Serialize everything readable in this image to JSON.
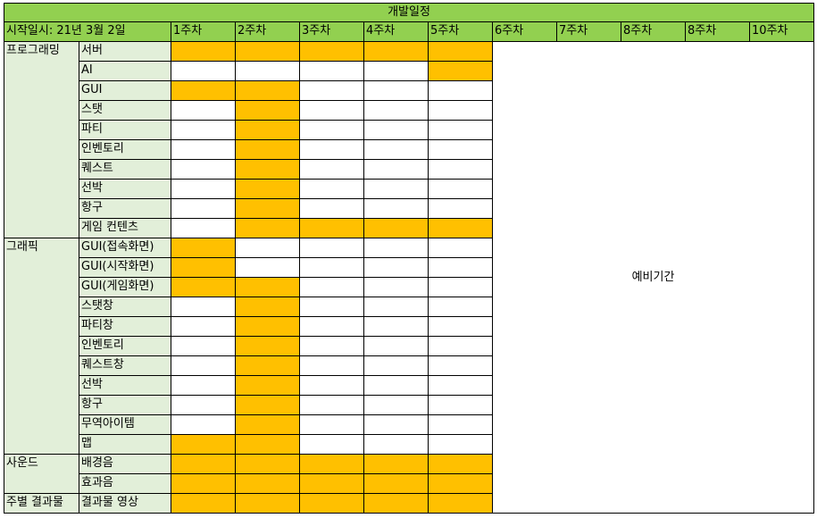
{
  "title": "개발일정",
  "start_label": "시작일시: 21년 3월 2일",
  "weeks": [
    "1주차",
    "2주차",
    "3주차",
    "4주차",
    "5주차",
    "6주차",
    "7주차",
    "8주차",
    "8주차",
    "10주차"
  ],
  "buffer_label": "예비기간",
  "groups": [
    {
      "name": "프로그래밍",
      "tasks": [
        {
          "name": "서버",
          "weeks": [
            1,
            1,
            1,
            1,
            1
          ]
        },
        {
          "name": "AI",
          "weeks": [
            0,
            0,
            0,
            0,
            1
          ]
        },
        {
          "name": "GUI",
          "weeks": [
            1,
            1,
            0,
            0,
            0
          ]
        },
        {
          "name": "스탯",
          "weeks": [
            0,
            1,
            0,
            0,
            0
          ]
        },
        {
          "name": "파티",
          "weeks": [
            0,
            1,
            0,
            0,
            0
          ]
        },
        {
          "name": "인벤토리",
          "weeks": [
            0,
            1,
            0,
            0,
            0
          ]
        },
        {
          "name": "퀘스트",
          "weeks": [
            0,
            1,
            0,
            0,
            0
          ]
        },
        {
          "name": "선박",
          "weeks": [
            0,
            1,
            0,
            0,
            0
          ]
        },
        {
          "name": "항구",
          "weeks": [
            0,
            1,
            0,
            0,
            0
          ]
        },
        {
          "name": "게임 컨텐츠",
          "weeks": [
            0,
            1,
            1,
            1,
            1
          ]
        }
      ]
    },
    {
      "name": "그래픽",
      "tasks": [
        {
          "name": "GUI(접속화면)",
          "weeks": [
            1,
            0,
            0,
            0,
            0
          ]
        },
        {
          "name": "GUI(시작화면)",
          "weeks": [
            1,
            0,
            0,
            0,
            0
          ]
        },
        {
          "name": "GUI(게임화면)",
          "weeks": [
            1,
            1,
            0,
            0,
            0
          ]
        },
        {
          "name": "스탯창",
          "weeks": [
            0,
            1,
            0,
            0,
            0
          ]
        },
        {
          "name": "파티창",
          "weeks": [
            0,
            1,
            0,
            0,
            0
          ]
        },
        {
          "name": "인벤토리",
          "weeks": [
            0,
            1,
            0,
            0,
            0
          ]
        },
        {
          "name": "퀘스트창",
          "weeks": [
            0,
            1,
            0,
            0,
            0
          ]
        },
        {
          "name": "선박",
          "weeks": [
            0,
            1,
            0,
            0,
            0
          ]
        },
        {
          "name": "항구",
          "weeks": [
            0,
            1,
            0,
            0,
            0
          ]
        },
        {
          "name": "무역아이템",
          "weeks": [
            0,
            1,
            0,
            0,
            0
          ]
        },
        {
          "name": "맵",
          "weeks": [
            1,
            1,
            0,
            0,
            0
          ]
        }
      ]
    },
    {
      "name": "사운드",
      "tasks": [
        {
          "name": "배경음",
          "weeks": [
            1,
            1,
            1,
            1,
            1
          ]
        },
        {
          "name": "효과음",
          "weeks": [
            1,
            1,
            1,
            1,
            1
          ]
        }
      ]
    },
    {
      "name": "주별 결과물",
      "tasks": [
        {
          "name": "결과물 영상",
          "weeks": [
            1,
            1,
            1,
            1,
            1
          ]
        }
      ]
    }
  ],
  "colors": {
    "header": "#92d050",
    "label": "#e2efd9",
    "scheduled": "#ffc000",
    "empty": "#ffffff"
  }
}
